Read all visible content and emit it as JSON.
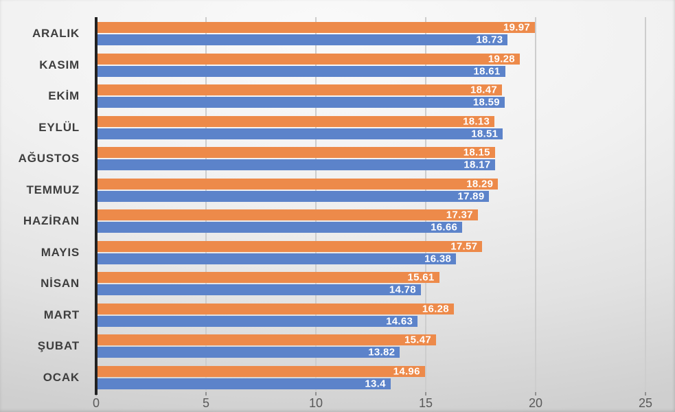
{
  "chart_data": {
    "type": "bar",
    "orientation": "horizontal",
    "title": "",
    "xlabel": "",
    "ylabel": "",
    "xlim": [
      0,
      25
    ],
    "x_ticks": [
      "0",
      "5",
      "10",
      "15",
      "20",
      "25"
    ],
    "grid": "vertical-gridlines-on",
    "legend_position": "none",
    "categories": [
      "ARALIK",
      "KASIM",
      "EKİM",
      "EYLÜL",
      "AĞUSTOS",
      "TEMMUZ",
      "HAZİRAN",
      "MAYIS",
      "NİSAN",
      "MART",
      "ŞUBAT",
      "OCAK"
    ],
    "series": [
      {
        "name": "orange-series",
        "color": "#ED8A4A",
        "values": [
          19.97,
          19.28,
          18.47,
          18.13,
          18.15,
          18.29,
          17.37,
          17.57,
          15.61,
          16.28,
          15.47,
          14.96
        ],
        "labels": [
          "19.97",
          "19.28",
          "18.47",
          "18.13",
          "18.15",
          "18.29",
          "17.37",
          "17.57",
          "15.61",
          "16.28",
          "15.47",
          "14.96"
        ]
      },
      {
        "name": "blue-series",
        "color": "#5C83CA",
        "values": [
          18.73,
          18.61,
          18.59,
          18.51,
          18.17,
          17.89,
          16.66,
          16.38,
          14.78,
          14.63,
          13.82,
          13.4
        ],
        "labels": [
          "18.73",
          "18.61",
          "18.59",
          "18.51",
          "18.17",
          "17.89",
          "16.66",
          "16.38",
          "14.78",
          "14.63",
          "13.82",
          "13.4"
        ]
      }
    ],
    "colors": {
      "data_label": "#FFFFFF",
      "axis_line": "#222222",
      "gridline": "#CDCDCD",
      "tick_label": "#595959",
      "category_label": "#3E3E3E"
    }
  }
}
